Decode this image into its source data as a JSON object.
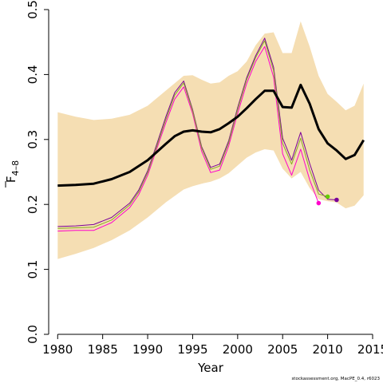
{
  "chart_data": {
    "type": "line",
    "xlabel": "Year",
    "ylabel_main": "F",
    "ylabel_sub": "4–8",
    "xlim": [
      1979,
      2015
    ],
    "ylim": [
      0,
      0.5
    ],
    "x_ticks": [
      1980,
      1985,
      1990,
      1995,
      2000,
      2005,
      2010,
      2015
    ],
    "y_ticks": [
      0.0,
      0.1,
      0.2,
      0.3,
      0.4,
      0.5
    ],
    "y_tick_labels": [
      "0.0",
      "0.1",
      "0.2",
      "0.3",
      "0.4",
      "0.5"
    ],
    "band_color": "#f5deb3",
    "band": {
      "x": [
        1980,
        1982,
        1984,
        1986,
        1988,
        1990,
        1992,
        1994,
        1995,
        1996,
        1997,
        1998,
        1999,
        2000,
        2001,
        2002,
        2003,
        2004,
        2005,
        2006,
        2007,
        2008,
        2009,
        2010,
        2011,
        2012,
        2013,
        2014
      ],
      "upper": [
        0.342,
        0.335,
        0.33,
        0.332,
        0.338,
        0.352,
        0.375,
        0.398,
        0.399,
        0.392,
        0.386,
        0.388,
        0.398,
        0.405,
        0.42,
        0.445,
        0.463,
        0.465,
        0.433,
        0.433,
        0.482,
        0.443,
        0.398,
        0.37,
        0.358,
        0.345,
        0.352,
        0.386
      ],
      "lower": [
        0.116,
        0.124,
        0.133,
        0.145,
        0.16,
        0.18,
        0.203,
        0.223,
        0.228,
        0.232,
        0.235,
        0.24,
        0.248,
        0.26,
        0.272,
        0.28,
        0.285,
        0.283,
        0.255,
        0.24,
        0.25,
        0.225,
        0.208,
        0.205,
        0.203,
        0.194,
        0.198,
        0.214
      ]
    },
    "series": [
      {
        "color": "#000000",
        "x": [
          1980,
          1982,
          1984,
          1986,
          1988,
          1990,
          1992,
          1993,
          1994,
          1995,
          1996,
          1997,
          1998,
          1999,
          2000,
          2001,
          2002,
          2003,
          2004,
          2005,
          2006,
          2007,
          2008,
          2009,
          2010,
          2011,
          2012,
          2013,
          2014
        ],
        "y": [
          0.229,
          0.23,
          0.232,
          0.239,
          0.25,
          0.268,
          0.293,
          0.305,
          0.312,
          0.314,
          0.312,
          0.311,
          0.316,
          0.325,
          0.335,
          0.348,
          0.362,
          0.375,
          0.375,
          0.35,
          0.349,
          0.384,
          0.355,
          0.316,
          0.294,
          0.283,
          0.27,
          0.276,
          0.299
        ]
      },
      {
        "color": "#ff00cc",
        "x": [
          1980,
          1982,
          1984,
          1986,
          1988,
          1989,
          1990,
          1991,
          1992,
          1993,
          1994,
          1995,
          1996,
          1997,
          1998,
          1999,
          2000,
          2001,
          2002,
          2003,
          2004,
          2005,
          2006,
          2007,
          2008,
          2009
        ],
        "y": [
          0.159,
          0.16,
          0.16,
          0.172,
          0.195,
          0.215,
          0.245,
          0.285,
          0.325,
          0.362,
          0.381,
          0.34,
          0.282,
          0.249,
          0.253,
          0.29,
          0.34,
          0.386,
          0.42,
          0.443,
          0.396,
          0.278,
          0.245,
          0.285,
          0.238,
          0.202
        ]
      },
      {
        "color": "#7a0099",
        "x": [
          1980,
          1982,
          1984,
          1986,
          1988,
          1989,
          1990,
          1991,
          1992,
          1993,
          1994,
          1995,
          1996,
          1997,
          1998,
          1999,
          2000,
          2001,
          2002,
          2003,
          2004,
          2005,
          2006,
          2007,
          2008,
          2009,
          2010,
          2011
        ],
        "y": [
          0.166,
          0.167,
          0.169,
          0.18,
          0.202,
          0.222,
          0.252,
          0.292,
          0.334,
          0.372,
          0.39,
          0.346,
          0.289,
          0.257,
          0.262,
          0.298,
          0.349,
          0.395,
          0.429,
          0.456,
          0.411,
          0.302,
          0.268,
          0.311,
          0.263,
          0.222,
          0.208,
          0.207
        ]
      },
      {
        "color": "#88aa22",
        "x": [
          1980,
          1982,
          1984,
          1986,
          1988,
          1989,
          1990,
          1991,
          1992,
          1993,
          1994,
          1995,
          1996,
          1997,
          1998,
          1999,
          2000,
          2001,
          2002,
          2003,
          2004,
          2005,
          2006,
          2007,
          2008,
          2009,
          2010
        ],
        "y": [
          0.163,
          0.164,
          0.165,
          0.176,
          0.199,
          0.219,
          0.249,
          0.289,
          0.33,
          0.368,
          0.387,
          0.344,
          0.287,
          0.254,
          0.259,
          0.295,
          0.346,
          0.392,
          0.426,
          0.452,
          0.406,
          0.294,
          0.262,
          0.302,
          0.253,
          0.216,
          0.212
        ]
      }
    ],
    "end_points": [
      {
        "x": 2009,
        "y": 0.202,
        "color": "#ff00cc"
      },
      {
        "x": 2010,
        "y": 0.212,
        "color": "#66cc00"
      },
      {
        "x": 2011,
        "y": 0.207,
        "color": "#7a0099"
      }
    ]
  },
  "footer": "stockassessment.org, MacPE_0.4, r6023"
}
